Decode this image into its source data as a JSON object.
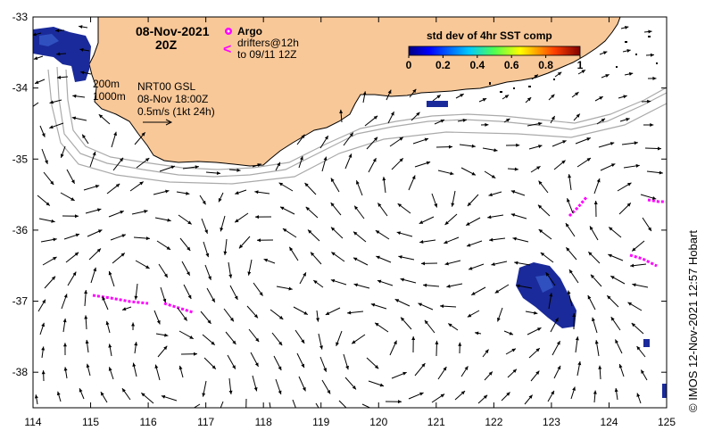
{
  "map": {
    "date": "08-Nov-2021",
    "time": "20Z",
    "product": "NRT00 GSL",
    "valid_time": "08-Nov 18:00Z",
    "scale_label": "0.5m/s (1kt 24h)",
    "depth_contours": [
      "200m",
      "1000m"
    ],
    "credit": "© IMOS 12-Nov-2021 12:57 Hobart",
    "colors": {
      "land": "#f9c898",
      "ocean": "#ffffff",
      "contour": "#aaaaaa",
      "drifter": "#ff00ff",
      "sst_patch": "#1a2a9a",
      "arrow": "#000000"
    }
  },
  "legend": {
    "argo_label": "Argo",
    "drifter_label_1": "drifters@12h",
    "drifter_label_2": "to 09/11 12Z"
  },
  "colorbar": {
    "title": "std dev of 4hr SST comp",
    "ticks": [
      "0",
      "0.2",
      "0.4",
      "0.6",
      "0.8",
      "1"
    ],
    "range": [
      0,
      1
    ]
  },
  "axes": {
    "x_ticks": [
      "114",
      "115",
      "116",
      "117",
      "118",
      "119",
      "120",
      "121",
      "122",
      "123",
      "124",
      "125"
    ],
    "y_ticks": [
      "-33",
      "-34",
      "-35",
      "-36",
      "-37",
      "-38"
    ],
    "lon_range": [
      114,
      125
    ],
    "lat_range": [
      -38.5,
      -33
    ]
  }
}
